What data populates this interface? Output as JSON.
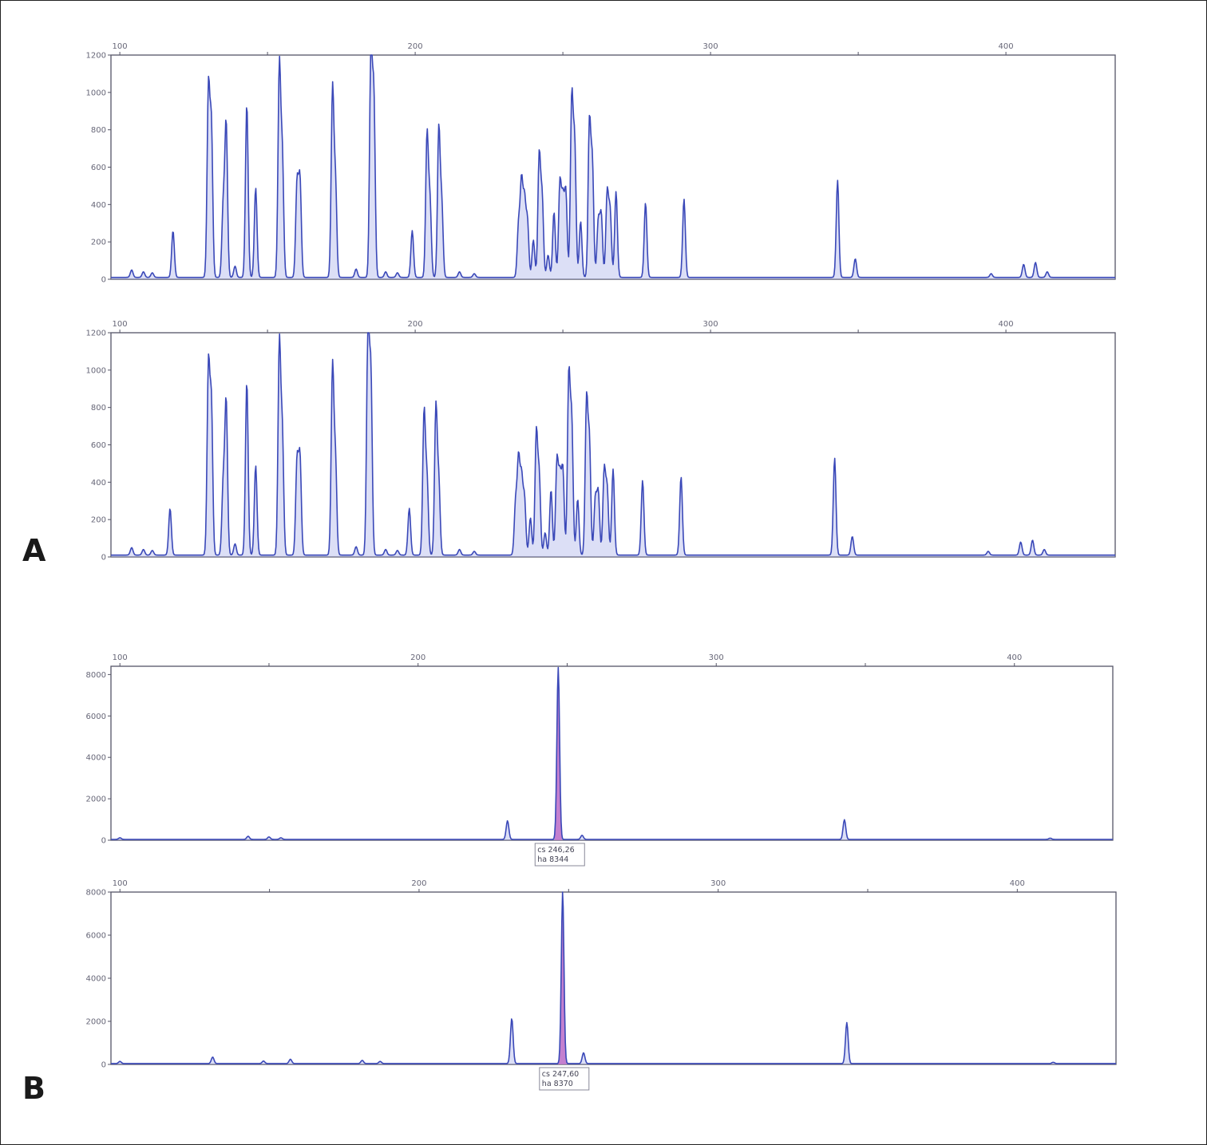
{
  "figure": {
    "panel_labels": [
      "A",
      "B"
    ]
  },
  "colors": {
    "trace": "#3a48b8",
    "trace_fill": "#2a3aa8",
    "trace_light": "#9aa3e6",
    "highlight": "#c070c8",
    "axis": "#555566",
    "tick_text": "#666677"
  },
  "chart_data": [
    {
      "type": "line",
      "panel": "A",
      "xlim": [
        97,
        437
      ],
      "ylim": [
        0,
        1200
      ],
      "xticks": [
        100,
        200,
        300,
        400
      ],
      "yticks": [
        0,
        200,
        400,
        600,
        800,
        1000,
        1200
      ],
      "baseline": 10,
      "peaks": [
        [
          104,
          40
        ],
        [
          108,
          30
        ],
        [
          111,
          25
        ],
        [
          118,
          250
        ],
        [
          130,
          1000
        ],
        [
          131,
          800
        ],
        [
          135,
          380
        ],
        [
          136,
          820
        ],
        [
          139,
          60
        ],
        [
          143,
          930
        ],
        [
          146,
          480
        ],
        [
          154,
          1120
        ],
        [
          155,
          650
        ],
        [
          160,
          500
        ],
        [
          161,
          520
        ],
        [
          172,
          1000
        ],
        [
          173,
          500
        ],
        [
          180,
          45
        ],
        [
          185,
          1200
        ],
        [
          186,
          950
        ],
        [
          190,
          30
        ],
        [
          194,
          25
        ],
        [
          199,
          250
        ],
        [
          204,
          760
        ],
        [
          205,
          400
        ],
        [
          208,
          790
        ],
        [
          209,
          390
        ],
        [
          215,
          30
        ],
        [
          220,
          20
        ],
        [
          235,
          280
        ],
        [
          236,
          500
        ],
        [
          237,
          400
        ],
        [
          238,
          300
        ],
        [
          240,
          200
        ],
        [
          242,
          650
        ],
        [
          243,
          420
        ],
        [
          245,
          120
        ],
        [
          247,
          350
        ],
        [
          249,
          500
        ],
        [
          250,
          400
        ],
        [
          251,
          450
        ],
        [
          253,
          950
        ],
        [
          254,
          700
        ],
        [
          256,
          300
        ],
        [
          259,
          820
        ],
        [
          260,
          600
        ],
        [
          262,
          300
        ],
        [
          263,
          330
        ],
        [
          265,
          450
        ],
        [
          266,
          350
        ],
        [
          268,
          460
        ],
        [
          278,
          400
        ],
        [
          291,
          420
        ],
        [
          343,
          520
        ],
        [
          349,
          100
        ],
        [
          395,
          20
        ],
        [
          406,
          70
        ],
        [
          410,
          80
        ],
        [
          414,
          30
        ]
      ],
      "series": [
        {
          "values": []
        }
      ]
    },
    {
      "type": "line",
      "panel": "A",
      "xlim": [
        97,
        437
      ],
      "ylim": [
        0,
        1200
      ],
      "xticks": [
        100,
        200,
        300,
        400
      ],
      "yticks": [
        0,
        200,
        400,
        600,
        800,
        1000,
        1200
      ],
      "baseline": 10,
      "peaks": [
        [
          104,
          40
        ],
        [
          108,
          30
        ],
        [
          111,
          25
        ],
        [
          117,
          250
        ],
        [
          130,
          1000
        ],
        [
          131,
          800
        ],
        [
          135,
          380
        ],
        [
          136,
          820
        ],
        [
          139,
          60
        ],
        [
          143,
          930
        ],
        [
          146,
          480
        ],
        [
          154,
          1120
        ],
        [
          155,
          650
        ],
        [
          160,
          500
        ],
        [
          161,
          520
        ],
        [
          172,
          1000
        ],
        [
          173,
          500
        ],
        [
          180,
          45
        ],
        [
          184,
          1200
        ],
        [
          185,
          950
        ],
        [
          190,
          30
        ],
        [
          194,
          25
        ],
        [
          198,
          250
        ],
        [
          203,
          760
        ],
        [
          204,
          400
        ],
        [
          207,
          790
        ],
        [
          208,
          390
        ],
        [
          215,
          30
        ],
        [
          220,
          20
        ],
        [
          234,
          280
        ],
        [
          235,
          500
        ],
        [
          236,
          400
        ],
        [
          237,
          300
        ],
        [
          239,
          200
        ],
        [
          241,
          650
        ],
        [
          242,
          420
        ],
        [
          244,
          120
        ],
        [
          246,
          350
        ],
        [
          248,
          500
        ],
        [
          249,
          400
        ],
        [
          250,
          450
        ],
        [
          252,
          950
        ],
        [
          253,
          700
        ],
        [
          255,
          300
        ],
        [
          258,
          820
        ],
        [
          259,
          600
        ],
        [
          261,
          300
        ],
        [
          262,
          330
        ],
        [
          264,
          450
        ],
        [
          265,
          350
        ],
        [
          267,
          460
        ],
        [
          277,
          400
        ],
        [
          290,
          420
        ],
        [
          342,
          520
        ],
        [
          348,
          100
        ],
        [
          394,
          20
        ],
        [
          405,
          70
        ],
        [
          409,
          80
        ],
        [
          413,
          30
        ]
      ],
      "series": [
        {
          "values": []
        }
      ]
    },
    {
      "type": "line",
      "panel": "B",
      "xlim": [
        97,
        433
      ],
      "ylim": [
        0,
        8400
      ],
      "xticks": [
        100,
        200,
        300,
        400
      ],
      "yticks": [
        0,
        2000,
        4000,
        6000,
        8000
      ],
      "baseline": 40,
      "peaks": [
        [
          100,
          80
        ],
        [
          143,
          150
        ],
        [
          150,
          120
        ],
        [
          154,
          80
        ],
        [
          230,
          900
        ],
        [
          247,
          8300
        ],
        [
          255,
          200
        ],
        [
          343,
          950
        ],
        [
          412,
          60
        ]
      ],
      "highlight": {
        "x": 247,
        "width_bp": 2.5
      },
      "annotation": [
        "cs 246,26",
        "ha 8344"
      ],
      "series": [
        {
          "values": []
        }
      ]
    },
    {
      "type": "line",
      "panel": "B",
      "xlim": [
        97,
        433
      ],
      "ylim": [
        0,
        8000
      ],
      "xticks": [
        100,
        200,
        300,
        400
      ],
      "yticks": [
        0,
        2000,
        4000,
        6000,
        8000
      ],
      "baseline": 40,
      "peaks": [
        [
          100,
          100
        ],
        [
          131,
          300
        ],
        [
          148,
          120
        ],
        [
          157,
          200
        ],
        [
          181,
          150
        ],
        [
          187,
          100
        ],
        [
          231,
          2100
        ],
        [
          248,
          8000
        ],
        [
          255,
          500
        ],
        [
          343,
          1900
        ],
        [
          412,
          60
        ]
      ],
      "highlight": {
        "x": 248,
        "width_bp": 3
      },
      "annotation": [
        "cs 247,60",
        "ha 8370"
      ],
      "series": [
        {
          "values": []
        }
      ]
    }
  ]
}
